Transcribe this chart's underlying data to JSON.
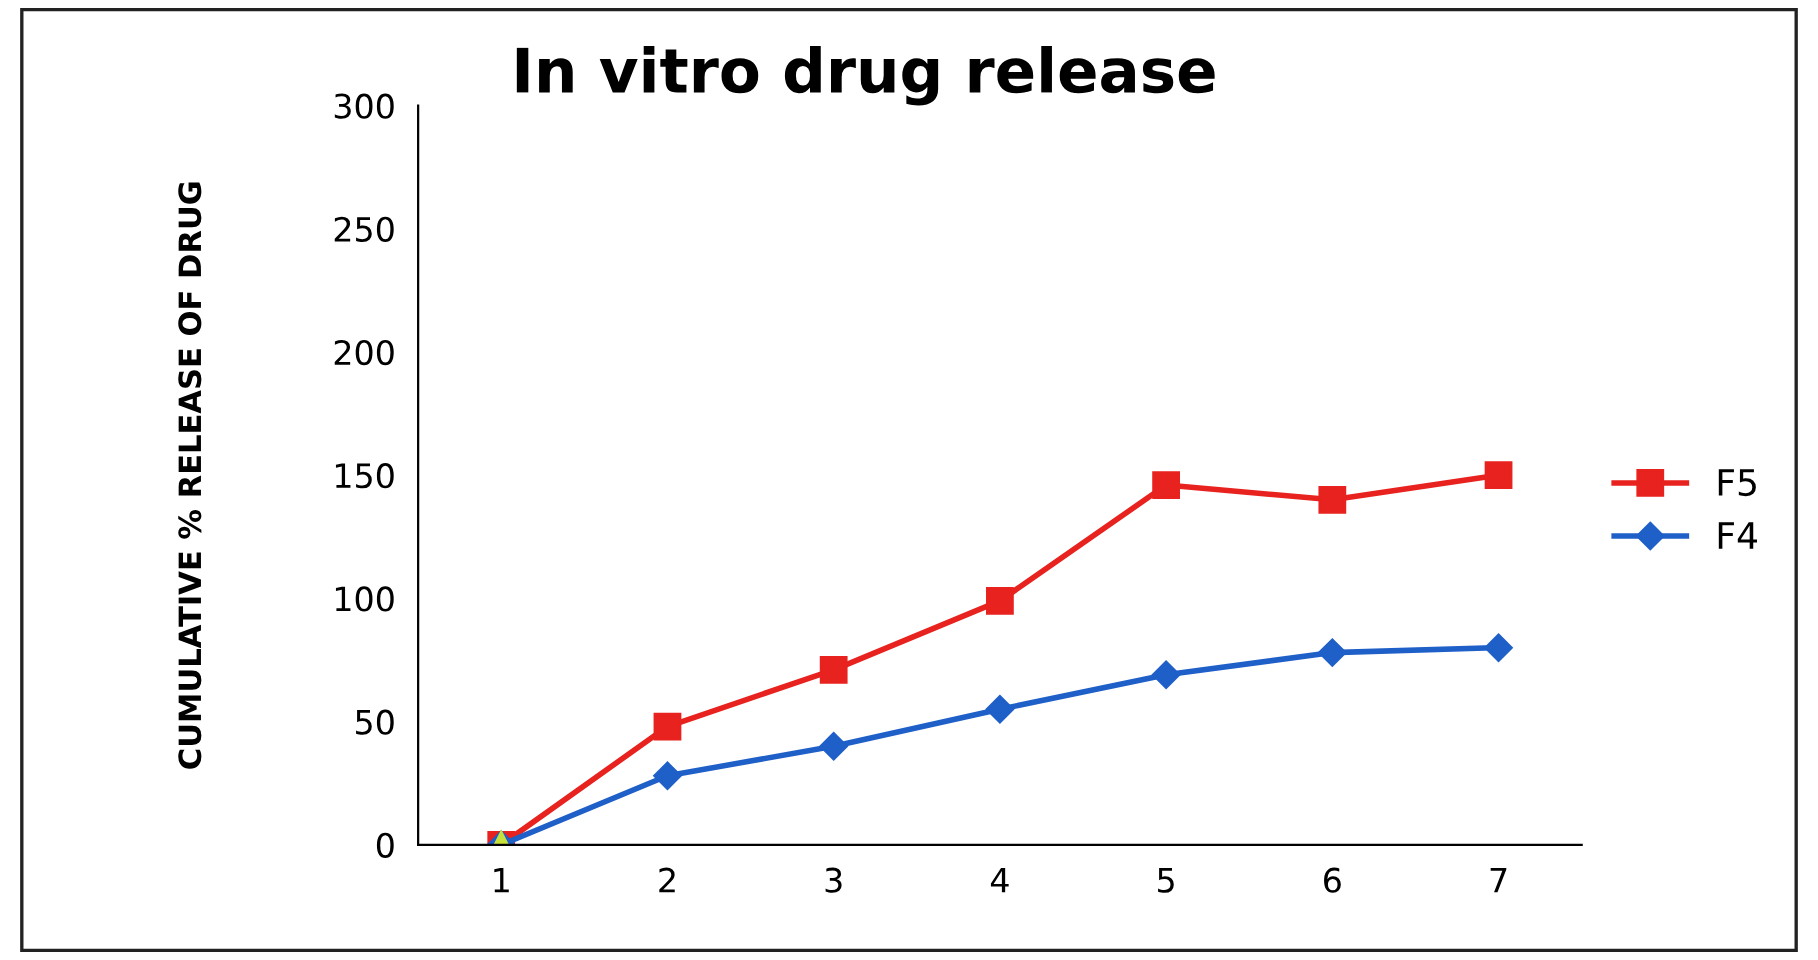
{
  "chart_data": {
    "type": "line",
    "title": "In vitro drug release",
    "ylabel": "CUMULATIVE % RELEASE OF DRUG",
    "categories": [
      "1",
      "2",
      "3",
      "4",
      "5",
      "6",
      "7"
    ],
    "series": [
      {
        "name": "F5",
        "color": "#e8221e",
        "marker": "square",
        "values": [
          0,
          48,
          71,
          99,
          146,
          140,
          150
        ]
      },
      {
        "name": "F4",
        "color": "#1f5fc8",
        "marker": "diamond",
        "values": [
          0,
          28,
          40,
          55,
          69,
          78,
          80
        ]
      },
      {
        "color": "#c8e03c",
        "marker": "triangle",
        "values": [
          0,
          null,
          null,
          null,
          null,
          null,
          null
        ]
      }
    ],
    "ylim": [
      0,
      300
    ],
    "yticks": [
      0,
      50,
      100,
      150,
      200,
      250,
      300
    ],
    "grid": false,
    "legend": "right"
  }
}
